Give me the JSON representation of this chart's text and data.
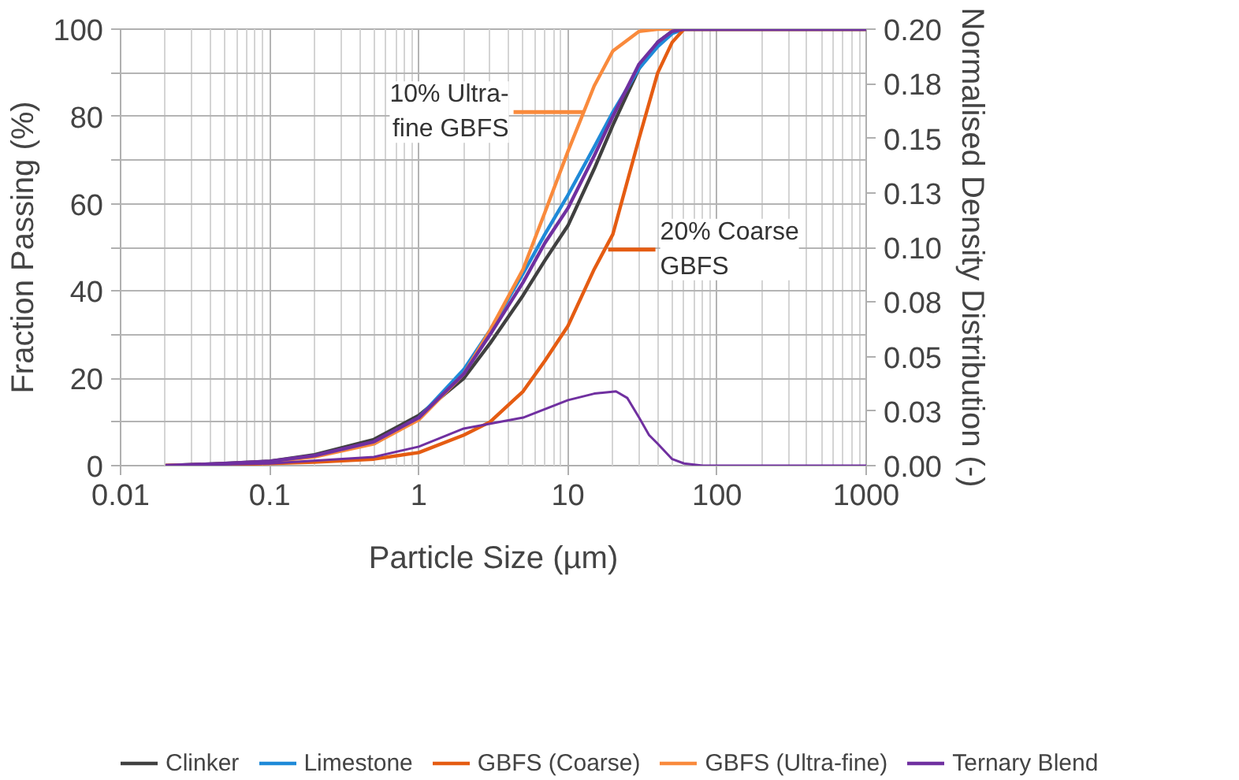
{
  "chart_data": {
    "type": "line",
    "xlabel": "Particle Size (µm)",
    "ylabel": "Fraction Passing (%)",
    "y2label": "Normalised Density Distribution (-)",
    "log": "x",
    "grid": true,
    "legend": "bottom",
    "marker": "none",
    "line_style": "solid",
    "xlim": [
      0.01,
      1000
    ],
    "xticks": [
      0.01,
      0.1,
      1,
      10,
      100,
      1000
    ],
    "ylim": [
      0,
      100
    ],
    "yticks": [
      0,
      {
        "value": 10,
        "label": null
      },
      20,
      {
        "value": 30,
        "label": null
      },
      40,
      {
        "value": 50,
        "label": null
      },
      60,
      {
        "value": 70,
        "label": null
      },
      80,
      {
        "value": 90,
        "label": null
      },
      100
    ],
    "y2lim": [
      0,
      0.2
    ],
    "y2ticks": [
      {
        "value": 0,
        "label": "0.00"
      },
      {
        "value": 0.025,
        "label": "0.03"
      },
      {
        "value": 0.05,
        "label": "0.05"
      },
      {
        "value": 0.075,
        "label": "0.08"
      },
      {
        "value": 0.1,
        "label": "0.10"
      },
      {
        "value": 0.125,
        "label": "0.13"
      },
      {
        "value": 0.15,
        "label": "0.15"
      },
      {
        "value": 0.175,
        "label": "0.18"
      },
      {
        "value": 0.2,
        "label": "0.20"
      }
    ],
    "x": [
      0.02,
      0.05,
      0.1,
      0.2,
      0.5,
      1,
      2,
      3,
      5,
      7,
      10,
      15,
      20,
      30,
      40,
      50,
      60,
      100,
      1000
    ],
    "series": [
      {
        "name": "Clinker",
        "color": "#404040",
        "values": [
          0,
          0.5,
          1,
          2.5,
          6,
          11.5,
          20,
          28,
          39,
          47,
          55,
          68,
          78,
          91,
          97,
          99.5,
          100,
          100,
          100
        ]
      },
      {
        "name": "Limestone",
        "color": "#1f8ad8",
        "values": [
          null,
          null,
          null,
          null,
          5,
          11,
          22,
          31,
          44,
          53,
          62,
          73,
          81,
          91,
          96,
          99,
          100,
          100,
          100
        ]
      },
      {
        "name": "GBFS (Coarse)",
        "color": "#e55c12",
        "values": [
          0,
          0.2,
          0.5,
          0.8,
          1.5,
          3,
          7,
          10,
          17,
          24,
          32,
          45,
          53,
          75,
          90,
          97,
          100,
          100,
          100
        ]
      },
      {
        "name": "GBFS (Ultra-fine)",
        "color": "#f98a3c",
        "values": [
          0,
          0.4,
          0.9,
          2,
          5,
          10.5,
          21,
          31,
          45,
          58,
          72,
          87,
          95,
          99.5,
          100,
          100,
          100,
          100,
          100
        ]
      },
      {
        "name": "Ternary Blend",
        "color": "#7030a0",
        "values": [
          0,
          0.5,
          1,
          2.3,
          5.5,
          11,
          21,
          30,
          42,
          51,
          59,
          71,
          80,
          92,
          97,
          99.5,
          100,
          100,
          100
        ]
      },
      {
        "color": "#7030a0",
        "axis": "y2",
        "x": [
          0.02,
          0.1,
          0.5,
          1,
          2,
          5,
          10,
          15,
          21,
          25,
          30,
          35,
          40,
          50,
          60,
          80,
          100,
          1000
        ],
        "values": [
          0,
          0.001,
          0.004,
          0.0087,
          0.017,
          0.022,
          0.03,
          0.033,
          0.034,
          0.031,
          0.022,
          0.014,
          0.01,
          0.003,
          0.001,
          0,
          0,
          0
        ]
      }
    ],
    "annotations": [
      {
        "text": "10% Ultra-\nfine GBFS",
        "x": 12.6,
        "y": 81
      },
      {
        "text": "20% Coarse\nGBFS",
        "x": 18.6,
        "y": 49.5
      }
    ]
  }
}
